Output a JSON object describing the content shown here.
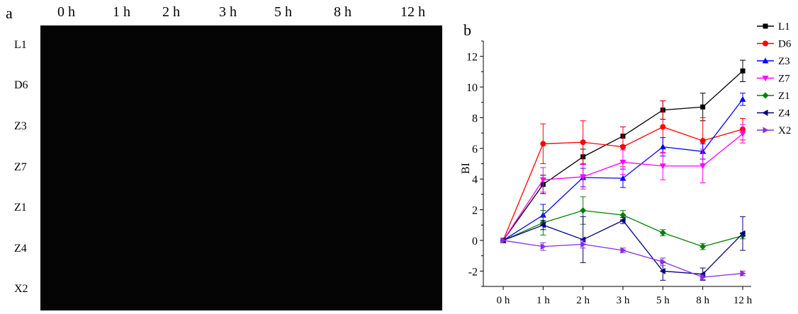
{
  "panel_a": {
    "letter": "a",
    "times": [
      "0 h",
      "1 h",
      "2 h",
      "3 h",
      "5 h",
      "8 h",
      "12  h"
    ],
    "samples": [
      "L1",
      "D6",
      "Z3",
      "Z7",
      "Z1",
      "Z4",
      "X2"
    ],
    "color_base": "#e3d46a",
    "color_dark": "#6e5e2c",
    "color_green": "#c8d05c",
    "color_bright": "#efe04a"
  },
  "chart_data": {
    "type": "line",
    "panel_letter": "b",
    "ylabel": "BI",
    "xlabel": "",
    "categories": [
      "0 h",
      "1 h",
      "2 h",
      "3 h",
      "5 h",
      "8 h",
      "12 h"
    ],
    "ylim": [
      -3,
      13
    ],
    "yticks": [
      -2,
      0,
      2,
      4,
      6,
      8,
      10,
      12
    ],
    "legend_position": "top-right",
    "series": [
      {
        "name": "L1",
        "color": "#000000",
        "marker": "square",
        "values": [
          0,
          3.65,
          5.45,
          6.8,
          8.5,
          8.7,
          11.05
        ],
        "errors": [
          0.05,
          0.6,
          0.5,
          0.6,
          0.6,
          0.9,
          0.7
        ]
      },
      {
        "name": "D6",
        "color": "#ff0000",
        "marker": "circle",
        "values": [
          0,
          6.3,
          6.4,
          6.1,
          7.4,
          6.5,
          7.25
        ],
        "errors": [
          0.05,
          1.3,
          1.4,
          1.3,
          1.7,
          1.5,
          0.7
        ]
      },
      {
        "name": "Z3",
        "color": "#0000ff",
        "marker": "triangle-up",
        "values": [
          0,
          1.65,
          4.1,
          4.05,
          6.1,
          5.8,
          9.2
        ],
        "errors": [
          0.05,
          0.7,
          0.6,
          0.6,
          0.6,
          0.5,
          0.4
        ]
      },
      {
        "name": "Z7",
        "color": "#ff00ff",
        "marker": "triangle-down",
        "values": [
          0,
          3.95,
          4.15,
          5.1,
          4.85,
          4.85,
          6.95
        ],
        "errors": [
          0.05,
          0.8,
          0.8,
          0.8,
          0.9,
          1.1,
          0.6
        ]
      },
      {
        "name": "Z1",
        "color": "#008000",
        "marker": "diamond",
        "values": [
          0,
          1.15,
          1.95,
          1.65,
          0.5,
          -0.4,
          0.3
        ],
        "errors": [
          0.05,
          0.8,
          0.9,
          0.3,
          0.2,
          0.2,
          0.2
        ]
      },
      {
        "name": "Z4",
        "color": "#000080",
        "marker": "triangle-left",
        "values": [
          0,
          1.0,
          0.05,
          1.3,
          -2.0,
          -2.2,
          0.45
        ],
        "errors": [
          0.05,
          0.3,
          1.5,
          0.2,
          0.6,
          0.4,
          1.1
        ]
      },
      {
        "name": "X2",
        "color": "#8a2be2",
        "marker": "triangle-right",
        "values": [
          0,
          -0.4,
          -0.25,
          -0.65,
          -1.4,
          -2.4,
          -2.15
        ],
        "errors": [
          0.05,
          0.25,
          0.25,
          0.15,
          0.25,
          0.15,
          0.15
        ]
      }
    ]
  }
}
